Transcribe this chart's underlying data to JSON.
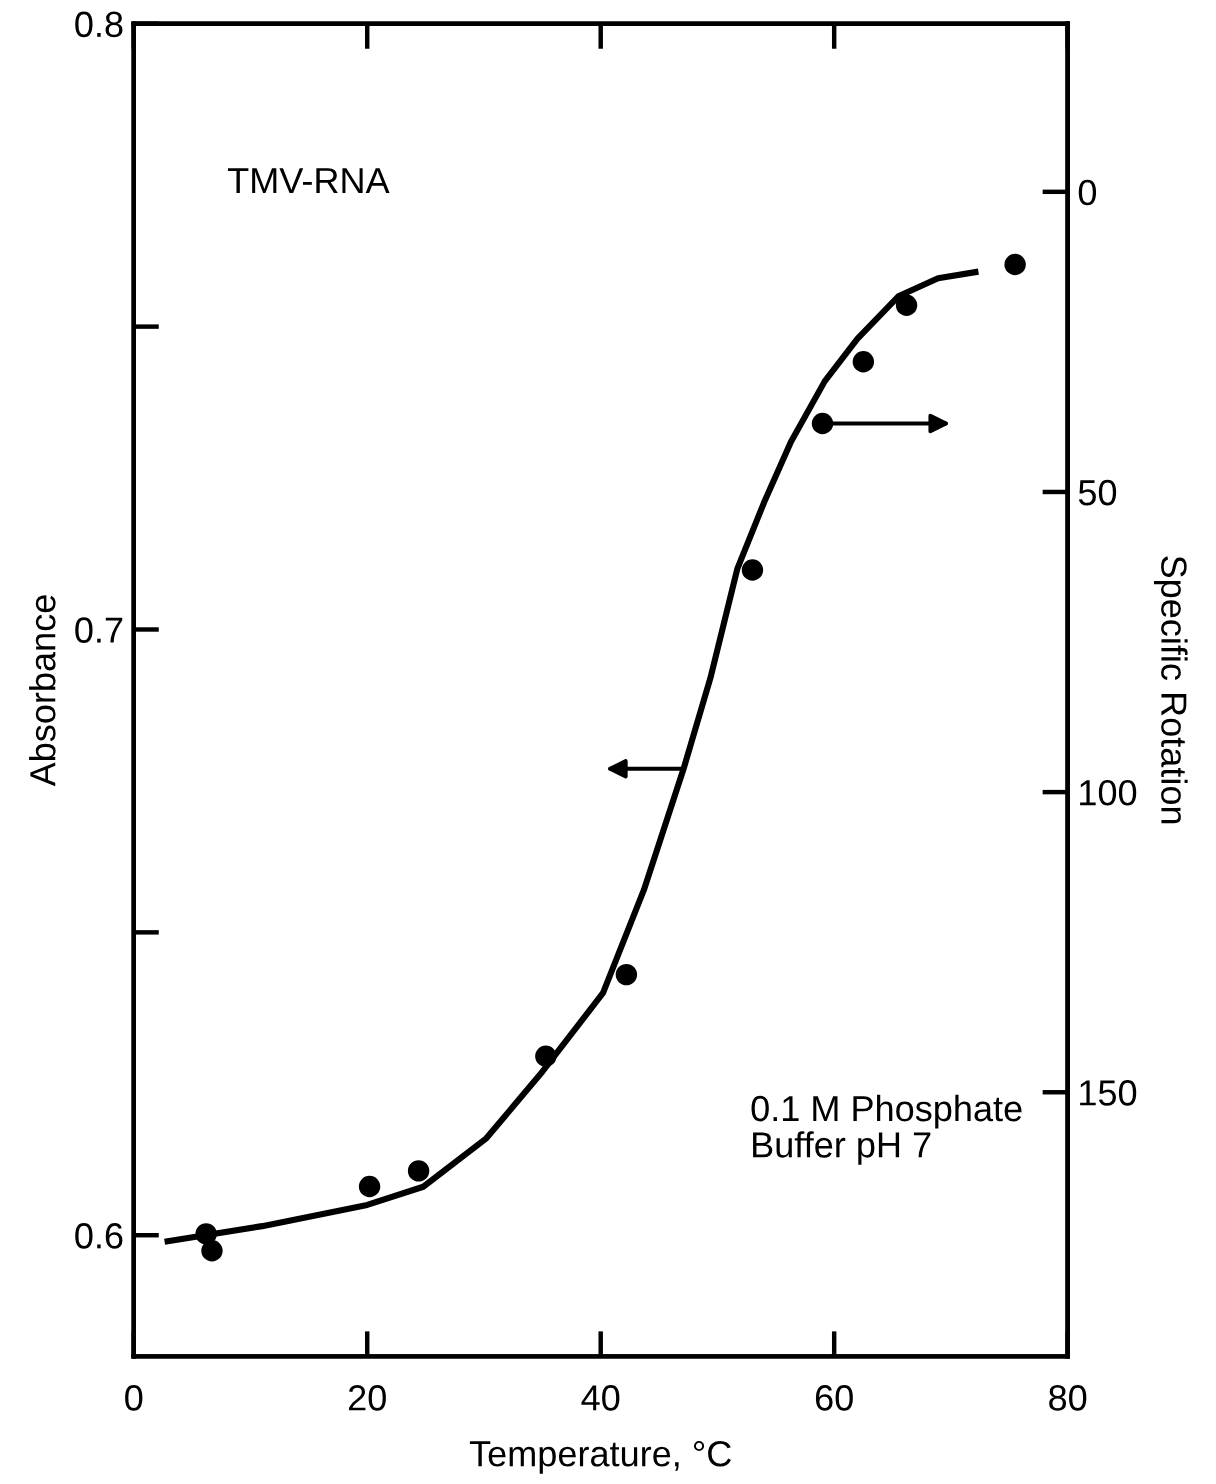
{
  "chart_data": {
    "type": "line",
    "xlabel": "Temperature, °C",
    "ylabel": "Absorbance",
    "y2label": "Specific Rotation",
    "annotations": [
      "TMV-RNA",
      "0.1 M Phosphate\nBuffer pH 7"
    ],
    "xlim": [
      0,
      80
    ],
    "xticks": [
      0,
      20,
      40,
      60,
      80
    ],
    "ylim": [
      0.58,
      0.8
    ],
    "yticks": [
      0.6,
      {
        "value": 0.65,
        "label": null
      },
      0.7,
      {
        "value": 0.75,
        "label": null
      },
      0.8
    ],
    "y2lim": [
      194,
      -28
    ],
    "y2ticks": [
      0,
      50,
      100,
      150
    ],
    "grid": false,
    "legend": false,
    "series": [
      {
        "color": "#000000",
        "line_style": "solid",
        "marker": "none",
        "x": [
          2.9,
          11.0,
          20.0,
          24.8,
          30.2,
          35.0,
          40.2,
          43.7,
          47.1,
          49.4,
          51.7,
          54.0,
          56.3,
          59.2,
          62.0,
          65.5,
          68.9,
          72.1
        ],
        "values": [
          0.599,
          0.6015,
          0.605,
          0.608,
          0.616,
          0.627,
          0.64,
          0.657,
          0.677,
          0.692,
          0.71,
          0.721,
          0.731,
          0.741,
          0.748,
          0.755,
          0.758,
          0.759
        ]
      },
      {
        "type": "scatter",
        "axis": "y2",
        "color": "#000000",
        "marker": "circle",
        "x": [
          6.2,
          6.7,
          20.2,
          24.4,
          35.3,
          42.2,
          53.0,
          59.0,
          62.5,
          66.2,
          75.5
        ],
        "values": [
          173.6,
          176.4,
          165.7,
          163.1,
          144.0,
          130.4,
          63.0,
          38.6,
          28.3,
          18.9,
          12.1
        ]
      }
    ]
  }
}
